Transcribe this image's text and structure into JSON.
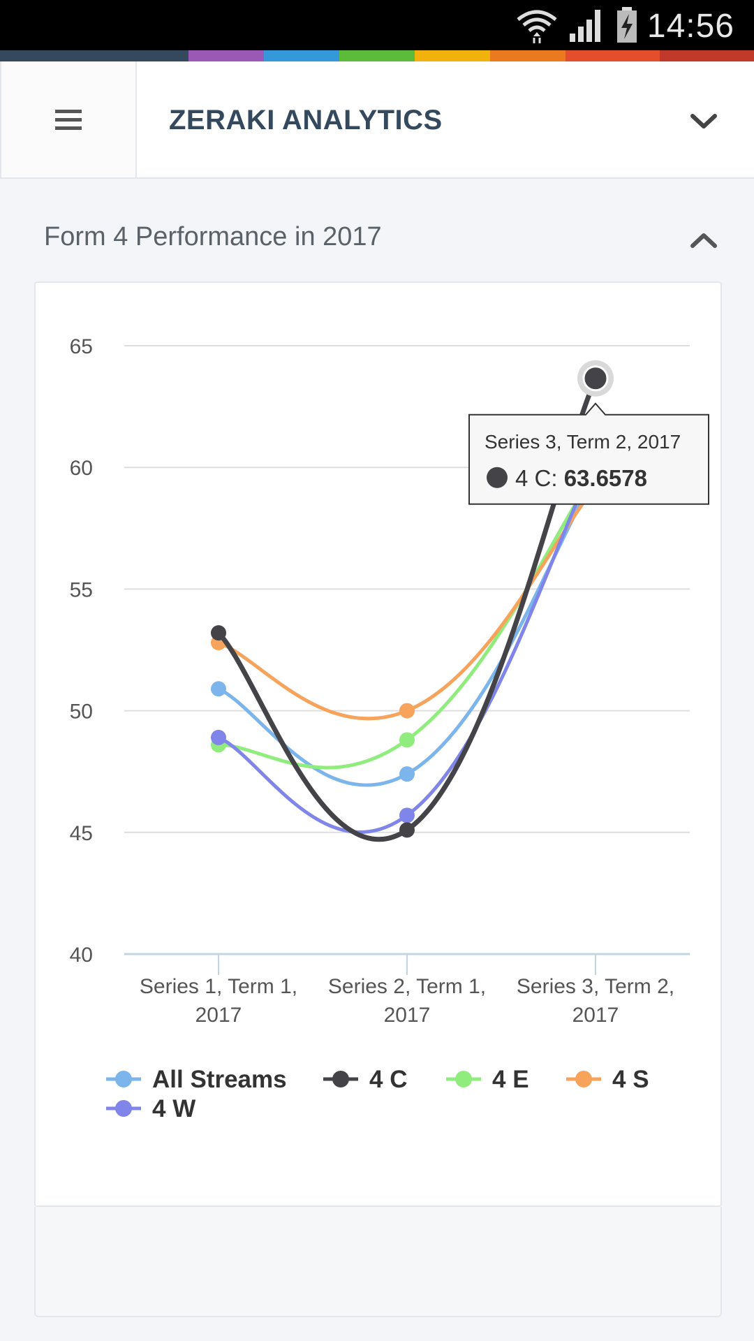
{
  "status_bar": {
    "time": "14:56",
    "icons": [
      "wifi-icon",
      "signal-icon",
      "battery-charging-icon"
    ]
  },
  "brand_stripe_colors": [
    "#34495e",
    "#9b59b6",
    "#3498db",
    "#5dbb3a",
    "#f1b20d",
    "#ea7a1d",
    "#e44f2b",
    "#c0392b"
  ],
  "header": {
    "menu_icon": "hamburger-menu-icon",
    "app_title": "ZERAKI ANALYTICS",
    "dropdown_icon": "chevron-down-icon"
  },
  "section": {
    "title": "Form 4 Performance in 2017",
    "collapse_icon": "chevron-up-icon"
  },
  "chart_data": {
    "type": "line",
    "title": "",
    "xlabel": "",
    "ylabel": "",
    "ylim": [
      40,
      65
    ],
    "yticks": [
      40,
      45,
      50,
      55,
      60,
      65
    ],
    "categories": [
      [
        "Series 1, Term 1,",
        "2017"
      ],
      [
        "Series 2, Term 1,",
        "2017"
      ],
      [
        "Series 3, Term 2,",
        "2017"
      ]
    ],
    "grid": true,
    "legend_position": "bottom",
    "series": [
      {
        "name": "All Streams",
        "color": "#7cb5ec",
        "values": [
          50.9,
          47.4,
          59.6
        ]
      },
      {
        "name": "4 C",
        "color": "#434348",
        "values": [
          53.2,
          45.1,
          63.6578
        ]
      },
      {
        "name": "4 E",
        "color": "#90ed7d",
        "values": [
          48.6,
          48.8,
          59.8
        ]
      },
      {
        "name": "4 S",
        "color": "#f7a35c",
        "values": [
          52.8,
          50.0,
          59.2
        ]
      },
      {
        "name": "4 W",
        "color": "#8085e9",
        "values": [
          48.9,
          45.7,
          60.2
        ]
      }
    ],
    "tooltip": {
      "title": "Series 3, Term 2, 2017",
      "series_label": "4 C:",
      "value": "63.6578",
      "series_index": 1,
      "point_index": 2
    }
  }
}
